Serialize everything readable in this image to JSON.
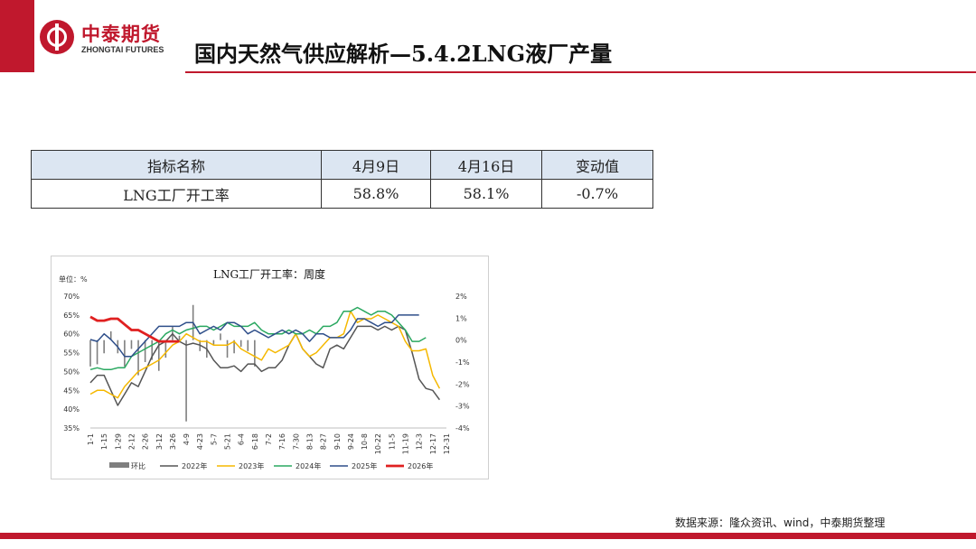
{
  "brand": {
    "name_cn": "中泰期货",
    "name_en": "ZHONGTAI FUTURES"
  },
  "title": "国内天然气供应解析—5.4.2LNG液厂产量",
  "table": {
    "headers": [
      "指标名称",
      "4月9日",
      "4月16日",
      "变动值"
    ],
    "rows": [
      [
        "LNG工厂开工率",
        "58.8%",
        "58.1%",
        "-0.7%"
      ]
    ]
  },
  "source": "数据来源：隆众资讯、wind，中泰期货整理",
  "chart_data": {
    "type": "line",
    "title": "LNG工厂开工率：周度",
    "unit_label": "单位：%",
    "ylim": [
      35,
      70
    ],
    "y_ticks": [
      "35%",
      "40%",
      "45%",
      "50%",
      "55%",
      "60%",
      "65%",
      "70%"
    ],
    "y2lim": [
      -4,
      2
    ],
    "y2_ticks": [
      "-4%",
      "-3%",
      "-2%",
      "-1%",
      "0%",
      "1%",
      "2%"
    ],
    "x_ticks": [
      "1-1",
      "1-15",
      "1-29",
      "2-12",
      "2-26",
      "3-12",
      "3-26",
      "4-9",
      "4-23",
      "5-7",
      "5-21",
      "6-4",
      "6-18",
      "7-2",
      "7-16",
      "7-30",
      "8-13",
      "8-27",
      "9-10",
      "9-24",
      "10-8",
      "10-22",
      "11-5",
      "11-19",
      "12-3",
      "12-17",
      "12-31"
    ],
    "colors": {
      "2022年": "#555555",
      "2023年": "#f5b800",
      "2024年": "#2aa860",
      "2025年": "#2f4f8a",
      "2026年": "#e02020",
      "环比": "#7f7f7f"
    },
    "series": [
      {
        "name": "2022年",
        "axis": "left",
        "values": [
          47,
          49,
          49,
          45,
          41,
          44,
          47,
          46,
          50,
          54,
          57,
          58,
          60,
          58,
          57,
          57.5,
          57,
          56,
          53,
          51,
          51,
          51.5,
          50,
          52,
          52,
          50,
          51,
          51,
          53,
          57,
          60,
          56,
          54,
          52,
          51,
          56,
          57,
          56,
          59,
          62,
          62,
          62,
          61,
          62,
          61,
          62,
          61,
          55,
          48,
          45.5,
          45,
          42.5
        ]
      },
      {
        "name": "2023年",
        "axis": "left",
        "values": [
          44,
          45,
          45,
          44,
          43,
          46,
          48,
          50,
          51,
          52,
          53,
          55,
          57,
          58,
          60,
          59,
          58,
          58,
          57,
          57,
          57,
          58,
          56,
          55,
          54,
          53,
          56,
          55,
          56,
          57,
          60,
          56,
          54,
          55,
          57,
          59,
          59,
          60,
          66,
          63,
          64,
          64,
          65,
          64,
          63,
          62,
          58,
          55.5,
          55.5,
          56,
          49,
          45.5
        ]
      },
      {
        "name": "2024年",
        "axis": "left",
        "values": [
          50.5,
          51,
          50.5,
          50.5,
          51,
          51,
          54,
          55,
          56,
          57,
          58,
          60,
          61,
          60,
          61,
          61.5,
          62,
          62,
          61,
          62,
          63,
          62,
          62,
          62,
          63,
          61,
          60,
          60,
          60,
          61,
          60,
          60,
          61,
          60,
          62,
          62,
          63,
          66,
          66,
          67,
          66,
          65,
          66,
          66,
          65,
          63,
          61,
          58,
          58,
          59
        ]
      },
      {
        "name": "2025年",
        "axis": "left",
        "values": [
          58.5,
          58,
          60,
          58.5,
          56.5,
          54,
          54,
          56,
          58,
          60,
          62,
          62,
          62,
          62,
          63,
          63,
          60,
          61,
          62,
          61,
          63,
          63,
          62,
          60,
          61,
          60,
          59,
          60,
          61,
          60,
          61,
          60,
          58,
          60,
          60,
          59,
          59,
          59,
          61,
          64,
          64,
          63,
          62,
          63,
          63,
          65,
          65,
          65,
          65
        ]
      },
      {
        "name": "2026年",
        "axis": "left",
        "values": [
          64.5,
          63.5,
          63.5,
          64,
          64,
          62.5,
          61,
          61,
          60,
          59,
          58,
          58,
          58,
          58
        ]
      },
      {
        "name": "环比",
        "axis": "right",
        "type": "bar",
        "values": [
          -1.2,
          -1.1,
          -0.6,
          0.4,
          -0.6,
          -1.2,
          -0.4,
          -1.6,
          -1.0,
          -0.9,
          -1.4,
          -0.8,
          0.6,
          0.2,
          -3.7,
          1.6,
          -0.5,
          -0.8,
          -0.2,
          0.3,
          -0.8,
          -0.6,
          -0.3,
          -0.5,
          -1.2
        ]
      }
    ]
  }
}
